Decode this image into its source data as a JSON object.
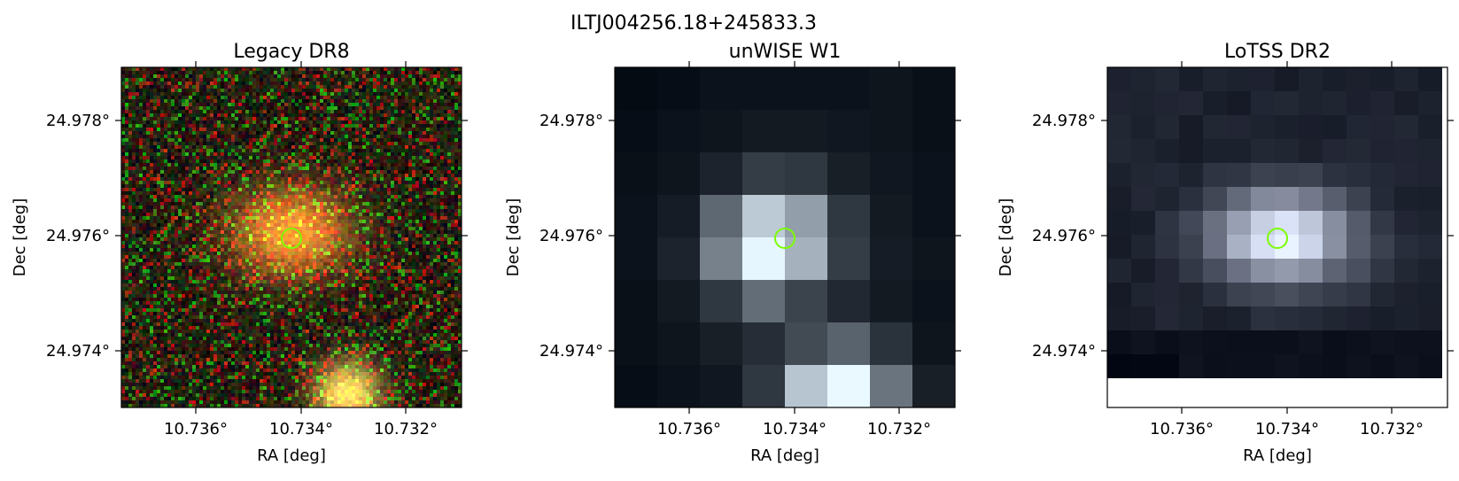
{
  "figure": {
    "title": "ILTJ004256.18+245833.3"
  },
  "panels": [
    {
      "title": "Legacy DR8",
      "xlabel": "RA [deg]",
      "ylabel": "Dec [deg]",
      "xticks": [
        "10.736°",
        "10.734°",
        "10.732°"
      ],
      "yticks": [
        "24.978°",
        "24.976°",
        "24.974°"
      ],
      "image_kind": "rgb-optical",
      "marker": {
        "shape": "circle",
        "color": "#7cfc00"
      }
    },
    {
      "title": "unWISE W1",
      "xlabel": "RA [deg]",
      "ylabel": "Dec [deg]",
      "xticks": [
        "10.736°",
        "10.734°",
        "10.732°"
      ],
      "yticks": [
        "24.978°",
        "24.976°",
        "24.974°"
      ],
      "image_kind": "grayscale-infrared",
      "marker": {
        "shape": "circle",
        "color": "#7cfc00"
      }
    },
    {
      "title": "LoTSS DR2",
      "xlabel": "RA [deg]",
      "ylabel": "Dec [deg]",
      "xticks": [
        "10.736°",
        "10.734°",
        "10.732°"
      ],
      "yticks": [
        "24.978°",
        "24.976°",
        "24.974°"
      ],
      "image_kind": "grayscale-radio",
      "marker": {
        "shape": "circle",
        "color": "#7cfc00"
      }
    }
  ]
}
